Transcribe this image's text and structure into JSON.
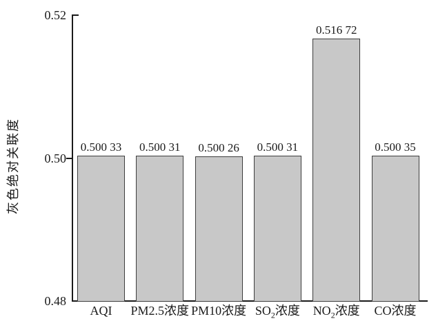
{
  "chart_data": {
    "type": "bar",
    "title": "",
    "ylabel": "灰色绝对关联度",
    "xlabel": "",
    "categories": [
      "AQI",
      "PM2.5浓度",
      "PM10浓度",
      "SO2浓度",
      "NO2浓度",
      "CO浓度"
    ],
    "category_parts": [
      [
        {
          "text": "AQI"
        }
      ],
      [
        {
          "text": "PM2.5浓度"
        }
      ],
      [
        {
          "text": "PM10浓度"
        }
      ],
      [
        {
          "text": "SO"
        },
        {
          "text": "2",
          "sub": true
        },
        {
          "text": "浓度"
        }
      ],
      [
        {
          "text": "NO"
        },
        {
          "text": "2",
          "sub": true
        },
        {
          "text": "浓度"
        }
      ],
      [
        {
          "text": "CO浓度"
        }
      ]
    ],
    "values": [
      0.50033,
      0.50031,
      0.50026,
      0.50031,
      0.51672,
      0.50035
    ],
    "value_labels": [
      "0.500 33",
      "0.500 31",
      "0.500 26",
      "0.500 31",
      "0.516 72",
      "0.500 35"
    ],
    "ylim": [
      0.48,
      0.52
    ],
    "yticks": [
      0.48,
      0.5,
      0.52
    ],
    "ytick_labels": [
      "0.48",
      "0.50",
      "0.52"
    ],
    "grid": false,
    "legend": "none",
    "bar_fill": "#c8c8c8",
    "bar_border": "#3d3d3d",
    "axis_color": "#1a1a1a",
    "text_color": "#1a1a1a"
  }
}
